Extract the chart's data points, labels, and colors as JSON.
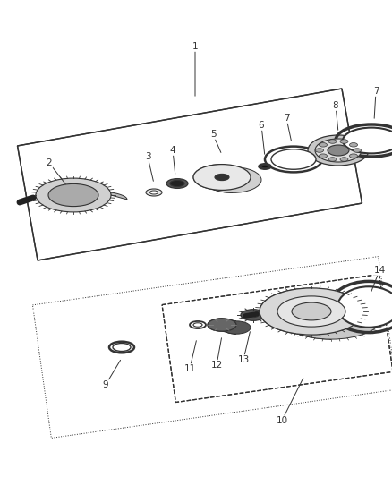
{
  "background_color": "#ffffff",
  "fig_width": 4.38,
  "fig_height": 5.33,
  "dpi": 100,
  "line_color": "#333333",
  "label_fontsize": 7.5
}
